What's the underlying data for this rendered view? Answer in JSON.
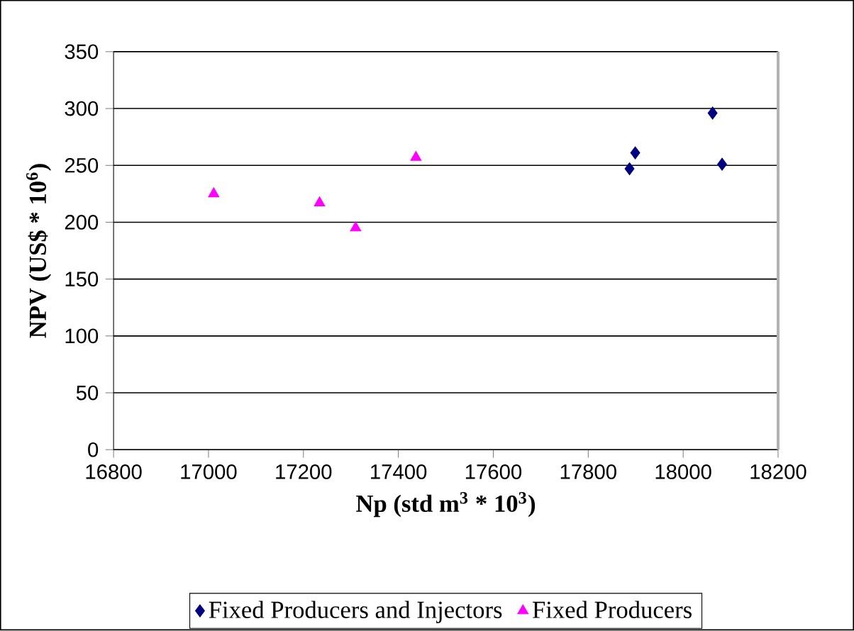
{
  "chart_data": {
    "type": "scatter",
    "xlabel": "Np (std m$^{3}$ * 10$^{3}$)",
    "ylabel": "NPV (US$ * 10$^{6}$)",
    "xlim": [
      16800,
      18200
    ],
    "xticks": [
      16800,
      17000,
      17200,
      17400,
      17600,
      17800,
      18000,
      18200
    ],
    "ylim": [
      0,
      350
    ],
    "yticks": [
      0,
      50,
      100,
      150,
      200,
      250,
      300,
      350
    ],
    "grid": "y",
    "legend": "bottom",
    "series": [
      {
        "name": "Fixed Producers and Injectors",
        "color": "#000080",
        "marker": "diamond",
        "x": [
          17887,
          17899,
          18062,
          18082
        ],
        "values": [
          247,
          261,
          296,
          251
        ]
      },
      {
        "name": "Fixed Producers",
        "color": "#ff00ff",
        "marker": "triangle",
        "x": [
          17011,
          17234,
          17310,
          17437
        ],
        "values": [
          225,
          217,
          195,
          257
        ]
      }
    ]
  }
}
